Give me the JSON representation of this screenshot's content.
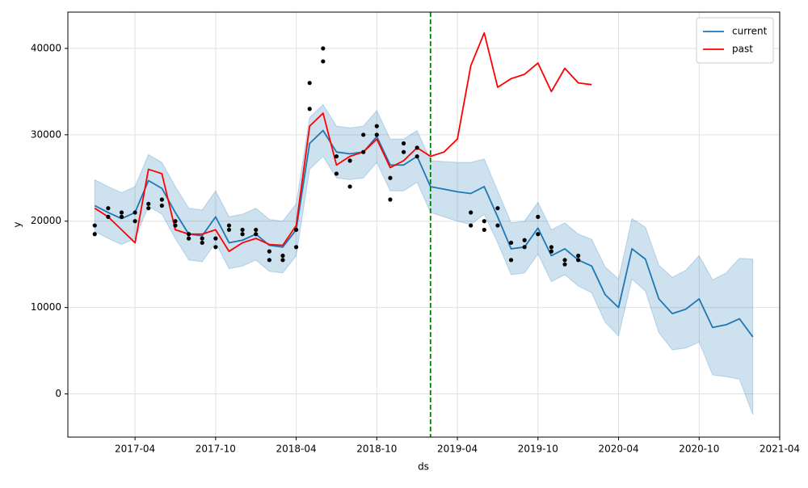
{
  "chart_data": {
    "type": "line",
    "x_label": "ds",
    "y_label": "y",
    "xlim": [
      "2016-11",
      "2021-04"
    ],
    "xticks": [
      "2017-04",
      "2017-10",
      "2018-04",
      "2018-10",
      "2019-04",
      "2019-10",
      "2020-04",
      "2020-10",
      "2021-04"
    ],
    "ylim": [
      -5000,
      44200
    ],
    "yticks": [
      0,
      10000,
      20000,
      30000,
      40000
    ],
    "grid": true,
    "legend": "upper right",
    "series": [
      {
        "name": "current",
        "color": "#1f77b4",
        "x": [
          "2017-01",
          "2017-02",
          "2017-03",
          "2017-04",
          "2017-05",
          "2017-06",
          "2017-07",
          "2017-08",
          "2017-09",
          "2017-10",
          "2017-11",
          "2017-12",
          "2018-01",
          "2018-02",
          "2018-03",
          "2018-04",
          "2018-05",
          "2018-06",
          "2018-07",
          "2018-08",
          "2018-09",
          "2018-10",
          "2018-11",
          "2018-12",
          "2019-01",
          "2019-02",
          "2019-03",
          "2019-04",
          "2019-05",
          "2019-06",
          "2019-07",
          "2019-08",
          "2019-09",
          "2019-10",
          "2019-11",
          "2019-12",
          "2020-01",
          "2020-02",
          "2020-03",
          "2020-04",
          "2020-05",
          "2020-06",
          "2020-07",
          "2020-08",
          "2020-09",
          "2020-10",
          "2020-11",
          "2020-12",
          "2021-01",
          "2021-02"
        ],
        "values": [
          21800,
          21000,
          20300,
          21000,
          24700,
          23800,
          21000,
          18500,
          18300,
          20500,
          17500,
          17800,
          18500,
          17200,
          17000,
          19000,
          29000,
          30500,
          28000,
          27800,
          28000,
          29800,
          26500,
          26500,
          27500,
          24000,
          23700,
          23400,
          23200,
          24000,
          20500,
          16800,
          17000,
          19200,
          16000,
          16800,
          15500,
          14800,
          11500,
          10000,
          16800,
          15600,
          11000,
          9300,
          9800,
          11000,
          7700,
          8000,
          8700,
          6600
        ]
      },
      {
        "name": "past",
        "color": "#ff0000",
        "x": [
          "2017-01",
          "2017-02",
          "2017-03",
          "2017-04",
          "2017-05",
          "2017-06",
          "2017-07",
          "2017-08",
          "2017-09",
          "2017-10",
          "2017-11",
          "2017-12",
          "2018-01",
          "2018-02",
          "2018-03",
          "2018-04",
          "2018-05",
          "2018-06",
          "2018-07",
          "2018-08",
          "2018-09",
          "2018-10",
          "2018-11",
          "2018-12",
          "2019-01",
          "2019-02",
          "2019-03",
          "2019-04",
          "2019-05",
          "2019-06",
          "2019-07",
          "2019-08",
          "2019-09",
          "2019-10",
          "2019-11",
          "2019-12",
          "2020-01",
          "2020-02"
        ],
        "values": [
          21500,
          20500,
          19000,
          17500,
          26000,
          25500,
          19000,
          18500,
          18500,
          19000,
          16500,
          17500,
          18000,
          17300,
          17200,
          19500,
          31000,
          32500,
          26500,
          27500,
          28000,
          29500,
          26200,
          27000,
          28500,
          27500,
          28000,
          29500,
          38000,
          41800,
          35500,
          36500,
          37000,
          38300,
          35000,
          37700,
          36000,
          35800
        ]
      }
    ],
    "band": {
      "color": "#1f77b4",
      "x": [
        "2017-01",
        "2017-02",
        "2017-03",
        "2017-04",
        "2017-05",
        "2017-06",
        "2017-07",
        "2017-08",
        "2017-09",
        "2017-10",
        "2017-11",
        "2017-12",
        "2018-01",
        "2018-02",
        "2018-03",
        "2018-04",
        "2018-05",
        "2018-06",
        "2018-07",
        "2018-08",
        "2018-09",
        "2018-10",
        "2018-11",
        "2018-12",
        "2019-01",
        "2019-02",
        "2019-03",
        "2019-04",
        "2019-05",
        "2019-06",
        "2019-07",
        "2019-08",
        "2019-09",
        "2019-10",
        "2019-11",
        "2019-12",
        "2020-01",
        "2020-02",
        "2020-03",
        "2020-04",
        "2020-05",
        "2020-06",
        "2020-07",
        "2020-08",
        "2020-09",
        "2020-10",
        "2020-11",
        "2020-12",
        "2021-01",
        "2021-02"
      ],
      "upper": [
        24800,
        24000,
        23300,
        24000,
        27700,
        26800,
        24000,
        21500,
        21300,
        23500,
        20500,
        20800,
        21500,
        20200,
        20000,
        22000,
        32000,
        33500,
        31000,
        30800,
        31000,
        32800,
        29500,
        29500,
        30500,
        27000,
        26900,
        26800,
        26800,
        27200,
        23500,
        19800,
        20000,
        22200,
        19000,
        19800,
        18500,
        17900,
        14700,
        13300,
        20300,
        19300,
        14900,
        13500,
        14300,
        16000,
        13200,
        14000,
        15700,
        15600
      ],
      "lower": [
        18800,
        18000,
        17300,
        18000,
        21700,
        20800,
        18000,
        15500,
        15300,
        17500,
        14500,
        14800,
        15500,
        14200,
        14000,
        16000,
        26000,
        27500,
        25000,
        24800,
        25000,
        26800,
        23500,
        23500,
        24500,
        21000,
        20500,
        20000,
        19600,
        20800,
        17500,
        13800,
        14000,
        16200,
        13000,
        13800,
        12500,
        11700,
        8300,
        6700,
        13300,
        11900,
        7100,
        5100,
        5300,
        6000,
        2200,
        2000,
        1700,
        -2400
      ]
    },
    "points": {
      "color": "#000000",
      "x": [
        "2017-01",
        "2017-01",
        "2017-02",
        "2017-02",
        "2017-03",
        "2017-03",
        "2017-04",
        "2017-04",
        "2017-05",
        "2017-05",
        "2017-06",
        "2017-06",
        "2017-07",
        "2017-07",
        "2017-08",
        "2017-08",
        "2017-09",
        "2017-09",
        "2017-10",
        "2017-10",
        "2017-11",
        "2017-11",
        "2017-12",
        "2017-12",
        "2018-01",
        "2018-01",
        "2018-02",
        "2018-02",
        "2018-03",
        "2018-03",
        "2018-04",
        "2018-04",
        "2018-05",
        "2018-05",
        "2018-06",
        "2018-06",
        "2018-07",
        "2018-07",
        "2018-08",
        "2018-08",
        "2018-09",
        "2018-09",
        "2018-10",
        "2018-10",
        "2018-11",
        "2018-11",
        "2018-12",
        "2018-12",
        "2019-01",
        "2019-01",
        "2019-05",
        "2019-05",
        "2019-06",
        "2019-06",
        "2019-07",
        "2019-07",
        "2019-08",
        "2019-08",
        "2019-09",
        "2019-09",
        "2019-10",
        "2019-10",
        "2019-11",
        "2019-11",
        "2019-12",
        "2019-12",
        "2020-01",
        "2020-01"
      ],
      "values": [
        18500,
        19500,
        20500,
        21500,
        20500,
        21000,
        21000,
        20000,
        22000,
        21500,
        22500,
        21800,
        20000,
        19500,
        18500,
        18000,
        18000,
        17500,
        17000,
        18000,
        19500,
        19000,
        19000,
        18500,
        18500,
        19000,
        15500,
        16500,
        15500,
        16000,
        17000,
        19000,
        33000,
        36000,
        40000,
        38500,
        27500,
        25500,
        24000,
        27000,
        28000,
        30000,
        31000,
        30000,
        22500,
        25000,
        28000,
        29000,
        28500,
        27500,
        21000,
        19500,
        19000,
        20000,
        21500,
        19500,
        15500,
        17500,
        17000,
        17800,
        20500,
        18500,
        16500,
        17000,
        15000,
        15500,
        15500,
        16000
      ]
    },
    "vline": {
      "x": "2019-02",
      "color": "#008000"
    }
  }
}
